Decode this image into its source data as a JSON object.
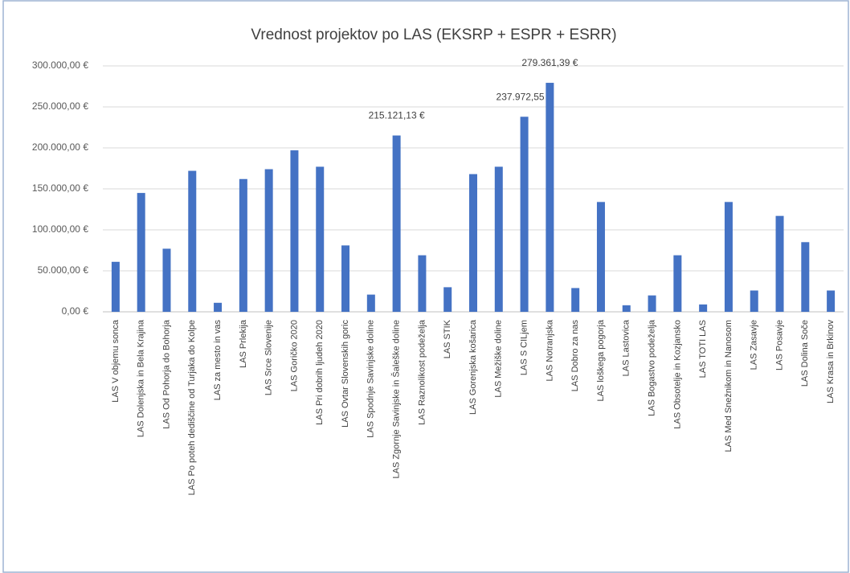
{
  "chart_data": {
    "type": "bar",
    "title": "Vrednost projektov po LAS (EKSRP + ESPR + ESRR)",
    "categories": [
      "LAS V objemu sonca",
      "LAS Dolenjska in Bela Krajina",
      "LAS Od Pohorja do Bohorja",
      "LAS Po poteh dediščine od Turjaka do Kolpe",
      "LAS za mesto in vas",
      "LAS Prlekija",
      "LAS Srce Slovenije",
      "LAS Goričko 2020",
      "LAS Pri dobrih ljudeh 2020",
      "LAS Ovtar Slovenskih goric",
      "LAS Spodnje Savinjske doline",
      "LAS Zgornje Savinjske in Šaleške doline",
      "LAS Raznolikost podeželja",
      "LAS STIK",
      "LAS Gorenjska košarica",
      "LAS Mežiške doline",
      "LAS S CILjem",
      "LAS Notranjska",
      "LAS Dobro za nas",
      "LAS loškega pogorja",
      "LAS Lastovica",
      "LAS Bogastvo podeželja",
      "LAS Obsotelje in Kozjansko",
      "LAS TOTI LAS",
      "LAS Med Snežnikom in Nanosom",
      "LAS Zasavje",
      "LAS Posavje",
      "LAS Dolina Soče",
      "LAS Krasa in Brkinov"
    ],
    "values": [
      61000,
      145000,
      77000,
      172000,
      11000,
      162000,
      174000,
      197000,
      177000,
      81000,
      21000,
      215121.13,
      69000,
      30000,
      168000,
      177000,
      237972.55,
      279361.39,
      29000,
      134000,
      8000,
      20000,
      69000,
      9000,
      134000,
      26000,
      117000,
      85000,
      26000
    ],
    "value_labels": [
      null,
      null,
      null,
      null,
      null,
      null,
      null,
      null,
      null,
      null,
      null,
      "215.121,13 €",
      null,
      null,
      null,
      null,
      "237.972,55 €",
      "279.361,39 €",
      null,
      null,
      null,
      null,
      null,
      null,
      null,
      null,
      null,
      null,
      null
    ],
    "color": "#4472c4",
    "ylim": [
      0,
      300000
    ],
    "yticks": [
      {
        "value": 0,
        "label": "0,00 €"
      },
      {
        "value": 50000,
        "label": "50.000,00 €"
      },
      {
        "value": 100000,
        "label": "100.000,00 €"
      },
      {
        "value": 150000,
        "label": "150.000,00 €"
      },
      {
        "value": 200000,
        "label": "200.000,00 €"
      },
      {
        "value": 250000,
        "label": "250.000,00 €"
      },
      {
        "value": 300000,
        "label": "300.000,00 €"
      }
    ],
    "grid": true
  }
}
